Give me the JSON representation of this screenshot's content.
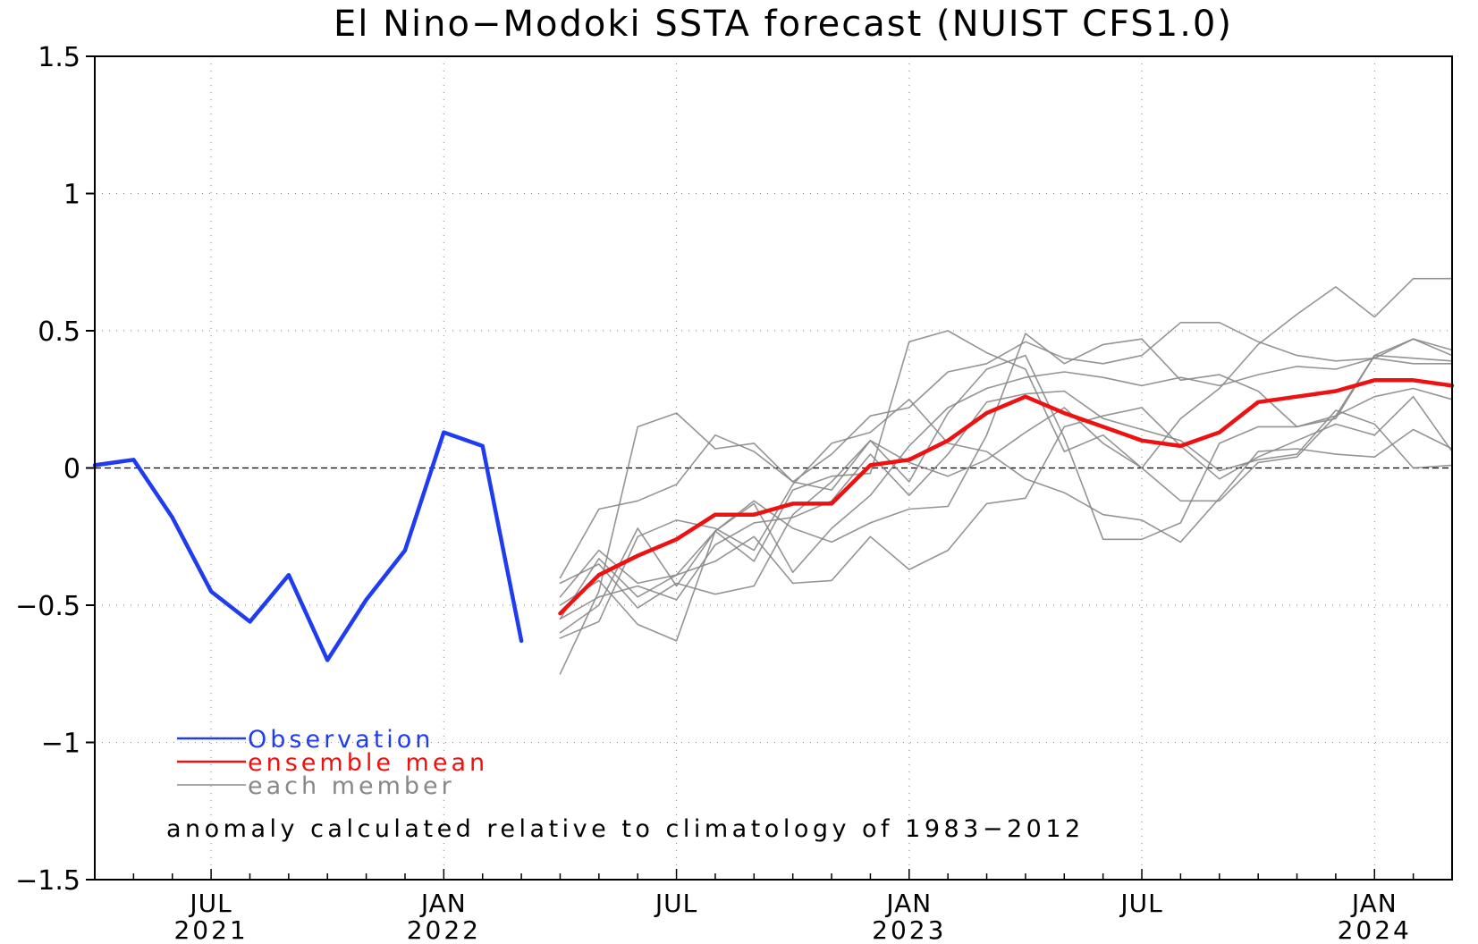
{
  "chart_data": {
    "type": "line",
    "title": "El Nino−Modoki SSTA forecast (NUIST CFS1.0)",
    "xlabel": "",
    "ylabel": "",
    "xlim": [
      0,
      35
    ],
    "ylim": [
      -1.5,
      1.5
    ],
    "grid": true,
    "zero_line": true,
    "yticks": [
      {
        "value": 1.5,
        "label": "1.5"
      },
      {
        "value": 1,
        "label": "1"
      },
      {
        "value": 0.5,
        "label": "0.5"
      },
      {
        "value": 0,
        "label": "0"
      },
      {
        "value": -0.5,
        "label": "−0.5"
      },
      {
        "value": -1,
        "label": "−1"
      },
      {
        "value": -1.5,
        "label": "−1.5"
      }
    ],
    "xticks": [
      {
        "value": 3,
        "month": "JUL",
        "year": "2021"
      },
      {
        "value": 9,
        "month": "JAN",
        "year": "2022"
      },
      {
        "value": 15,
        "month": "JUL",
        "year": ""
      },
      {
        "value": 21,
        "month": "JAN",
        "year": "2023"
      },
      {
        "value": 27,
        "month": "JUL",
        "year": ""
      },
      {
        "value": 33,
        "month": "JAN",
        "year": "2024"
      }
    ],
    "legend": {
      "placement": "bottom-left",
      "entries": [
        {
          "label": "Observation",
          "color": "#1f3cf0"
        },
        {
          "label": "ensemble mean",
          "color": "#ee1111"
        },
        {
          "label": "each member",
          "color": "#888888"
        }
      ]
    },
    "annotation": "anomaly calculated relative to climatology of 1983−2012",
    "series": [
      {
        "name": "Observation",
        "role": "observation",
        "color": "#1f3cf0",
        "x": [
          0,
          1,
          2,
          3,
          4,
          5,
          6,
          7,
          8,
          9,
          10,
          11
        ],
        "values": [
          0.01,
          0.03,
          -0.18,
          -0.45,
          -0.56,
          -0.39,
          -0.7,
          -0.48,
          -0.3,
          0.13,
          0.08,
          -0.63
        ]
      },
      {
        "name": "ensemble mean",
        "role": "mean",
        "color": "#ee1111",
        "x": [
          12,
          13,
          14,
          15,
          16,
          17,
          18,
          19,
          20,
          21,
          22,
          23,
          24,
          25,
          26,
          27,
          28,
          29,
          30,
          31,
          32,
          33,
          34,
          35
        ],
        "values": [
          -0.53,
          -0.39,
          -0.32,
          -0.26,
          -0.17,
          -0.17,
          -0.13,
          -0.13,
          0.01,
          0.03,
          0.1,
          0.2,
          0.26,
          0.2,
          0.15,
          0.1,
          0.08,
          0.13,
          0.24,
          0.26,
          0.28,
          0.32,
          0.32,
          0.3
        ]
      },
      {
        "name": "each member",
        "role": "member",
        "color": "#888888",
        "x": [
          12,
          13,
          14,
          15,
          16,
          17,
          18,
          19,
          20,
          21,
          22,
          23,
          24,
          25,
          26,
          27,
          28,
          29,
          30,
          31,
          32,
          33,
          34,
          35
        ],
        "values": [
          -0.75,
          -0.45,
          0.15,
          0.2,
          0.07,
          0.09,
          -0.05,
          -0.08,
          0.1,
          -0.05,
          0.2,
          0.36,
          0.41,
          0.11,
          -0.26,
          -0.26,
          -0.2,
          0.09,
          0.15,
          0.15,
          0.18,
          0.41,
          0.47,
          0.41
        ]
      },
      {
        "name": "each member",
        "x": [
          12,
          13,
          14,
          15,
          16,
          17,
          18,
          19,
          20,
          21,
          22,
          23,
          24,
          25,
          26,
          27,
          28,
          29,
          30,
          31,
          32,
          33,
          34,
          35
        ],
        "values": [
          -0.4,
          -0.15,
          -0.12,
          -0.06,
          0.12,
          0.06,
          -0.05,
          0.05,
          0.19,
          0.22,
          0.35,
          0.38,
          0.46,
          0.4,
          0.38,
          0.41,
          0.53,
          0.53,
          0.46,
          0.41,
          0.39,
          0.4,
          0.47,
          0.43
        ]
      },
      {
        "name": "each member",
        "x": [
          12,
          13,
          14,
          15,
          16,
          17,
          18,
          19,
          20,
          21,
          22,
          23,
          24,
          25,
          26,
          27,
          28,
          29,
          30,
          31,
          32,
          33,
          34,
          35
        ],
        "values": [
          -0.47,
          -0.3,
          -0.42,
          -0.39,
          -0.23,
          -0.13,
          -0.38,
          -0.22,
          -0.1,
          0.08,
          0.22,
          0.29,
          0.33,
          0.35,
          0.33,
          0.3,
          0.33,
          0.3,
          0.34,
          0.37,
          0.36,
          0.4,
          0.38,
          0.38
        ]
      },
      {
        "name": "each member",
        "x": [
          12,
          13,
          14,
          15,
          16,
          17,
          18,
          19,
          20,
          21,
          22,
          23,
          24,
          25,
          26,
          27,
          28,
          29,
          30,
          31,
          32,
          33,
          34,
          35
        ],
        "values": [
          -0.6,
          -0.5,
          -0.22,
          -0.43,
          -0.23,
          -0.12,
          -0.22,
          -0.27,
          -0.2,
          -0.15,
          -0.14,
          0.12,
          0.49,
          0.38,
          0.45,
          0.47,
          0.32,
          0.34,
          0.28,
          0.15,
          0.19,
          0.41,
          0.4,
          0.39
        ]
      },
      {
        "name": "each member",
        "x": [
          12,
          13,
          14,
          15,
          16,
          17,
          18,
          19,
          20,
          21,
          22,
          23,
          24,
          25,
          26,
          27,
          28,
          29,
          30,
          31,
          32,
          33,
          34,
          35
        ],
        "values": [
          -0.55,
          -0.33,
          -0.47,
          -0.39,
          -0.34,
          -0.25,
          -0.42,
          -0.41,
          -0.25,
          -0.37,
          -0.3,
          -0.13,
          -0.11,
          0.15,
          0.19,
          0.22,
          0.08,
          -0.04,
          0.04,
          0.1,
          0.16,
          0.12,
          0.26,
          0.06
        ]
      },
      {
        "name": "each member",
        "x": [
          12,
          13,
          14,
          15,
          16,
          17,
          18,
          19,
          20,
          21,
          22,
          23,
          24,
          25,
          26,
          27,
          28,
          29,
          30,
          31,
          32,
          33,
          34,
          35
        ],
        "values": [
          -0.62,
          -0.56,
          -0.25,
          -0.19,
          -0.22,
          -0.3,
          -0.06,
          0.09,
          0.13,
          0.25,
          0.09,
          0.06,
          -0.04,
          -0.09,
          -0.17,
          -0.19,
          -0.27,
          -0.11,
          0.06,
          0.07,
          0.05,
          0.04,
          0.14,
          0.07
        ]
      },
      {
        "name": "each member",
        "x": [
          12,
          13,
          14,
          15,
          16,
          17,
          18,
          19,
          20,
          21,
          22,
          23,
          24,
          25,
          26,
          27,
          28,
          29,
          30,
          31,
          32,
          33,
          34,
          35
        ],
        "values": [
          -0.42,
          -0.35,
          -0.51,
          -0.42,
          -0.46,
          -0.43,
          -0.17,
          -0.05,
          0.1,
          0.02,
          -0.03,
          0.03,
          0.13,
          0.22,
          0.09,
          0.0,
          -0.12,
          -0.12,
          0.02,
          0.04,
          0.19,
          0.26,
          0.29,
          0.25
        ]
      },
      {
        "name": "each member",
        "x": [
          12,
          13,
          14,
          15,
          16,
          17,
          18,
          19,
          20,
          21,
          22,
          23,
          24,
          25,
          26,
          27,
          28,
          29,
          30,
          31,
          32,
          33,
          34,
          35
        ],
        "values": [
          -0.5,
          -0.41,
          -0.57,
          -0.63,
          -0.23,
          -0.34,
          -0.08,
          -0.03,
          -0.02,
          0.46,
          0.5,
          0.42,
          0.36,
          0.06,
          0.12,
          0.0,
          0.18,
          0.29,
          0.45,
          0.56,
          0.66,
          0.55,
          0.69,
          0.69
        ]
      },
      {
        "name": "each member",
        "x": [
          12,
          13,
          14,
          15,
          16,
          17,
          18,
          19,
          20,
          21,
          22,
          23,
          24,
          25,
          26,
          27,
          28,
          29,
          30,
          31,
          32,
          33,
          34,
          35
        ],
        "values": [
          -0.55,
          -0.47,
          -0.43,
          -0.48,
          -0.28,
          -0.2,
          -0.18,
          -0.12,
          0.05,
          -0.1,
          0.05,
          0.24,
          0.27,
          0.28,
          0.18,
          0.14,
          0.1,
          -0.01,
          0.03,
          0.05,
          0.21,
          0.16,
          0.0,
          0.01
        ]
      }
    ]
  }
}
